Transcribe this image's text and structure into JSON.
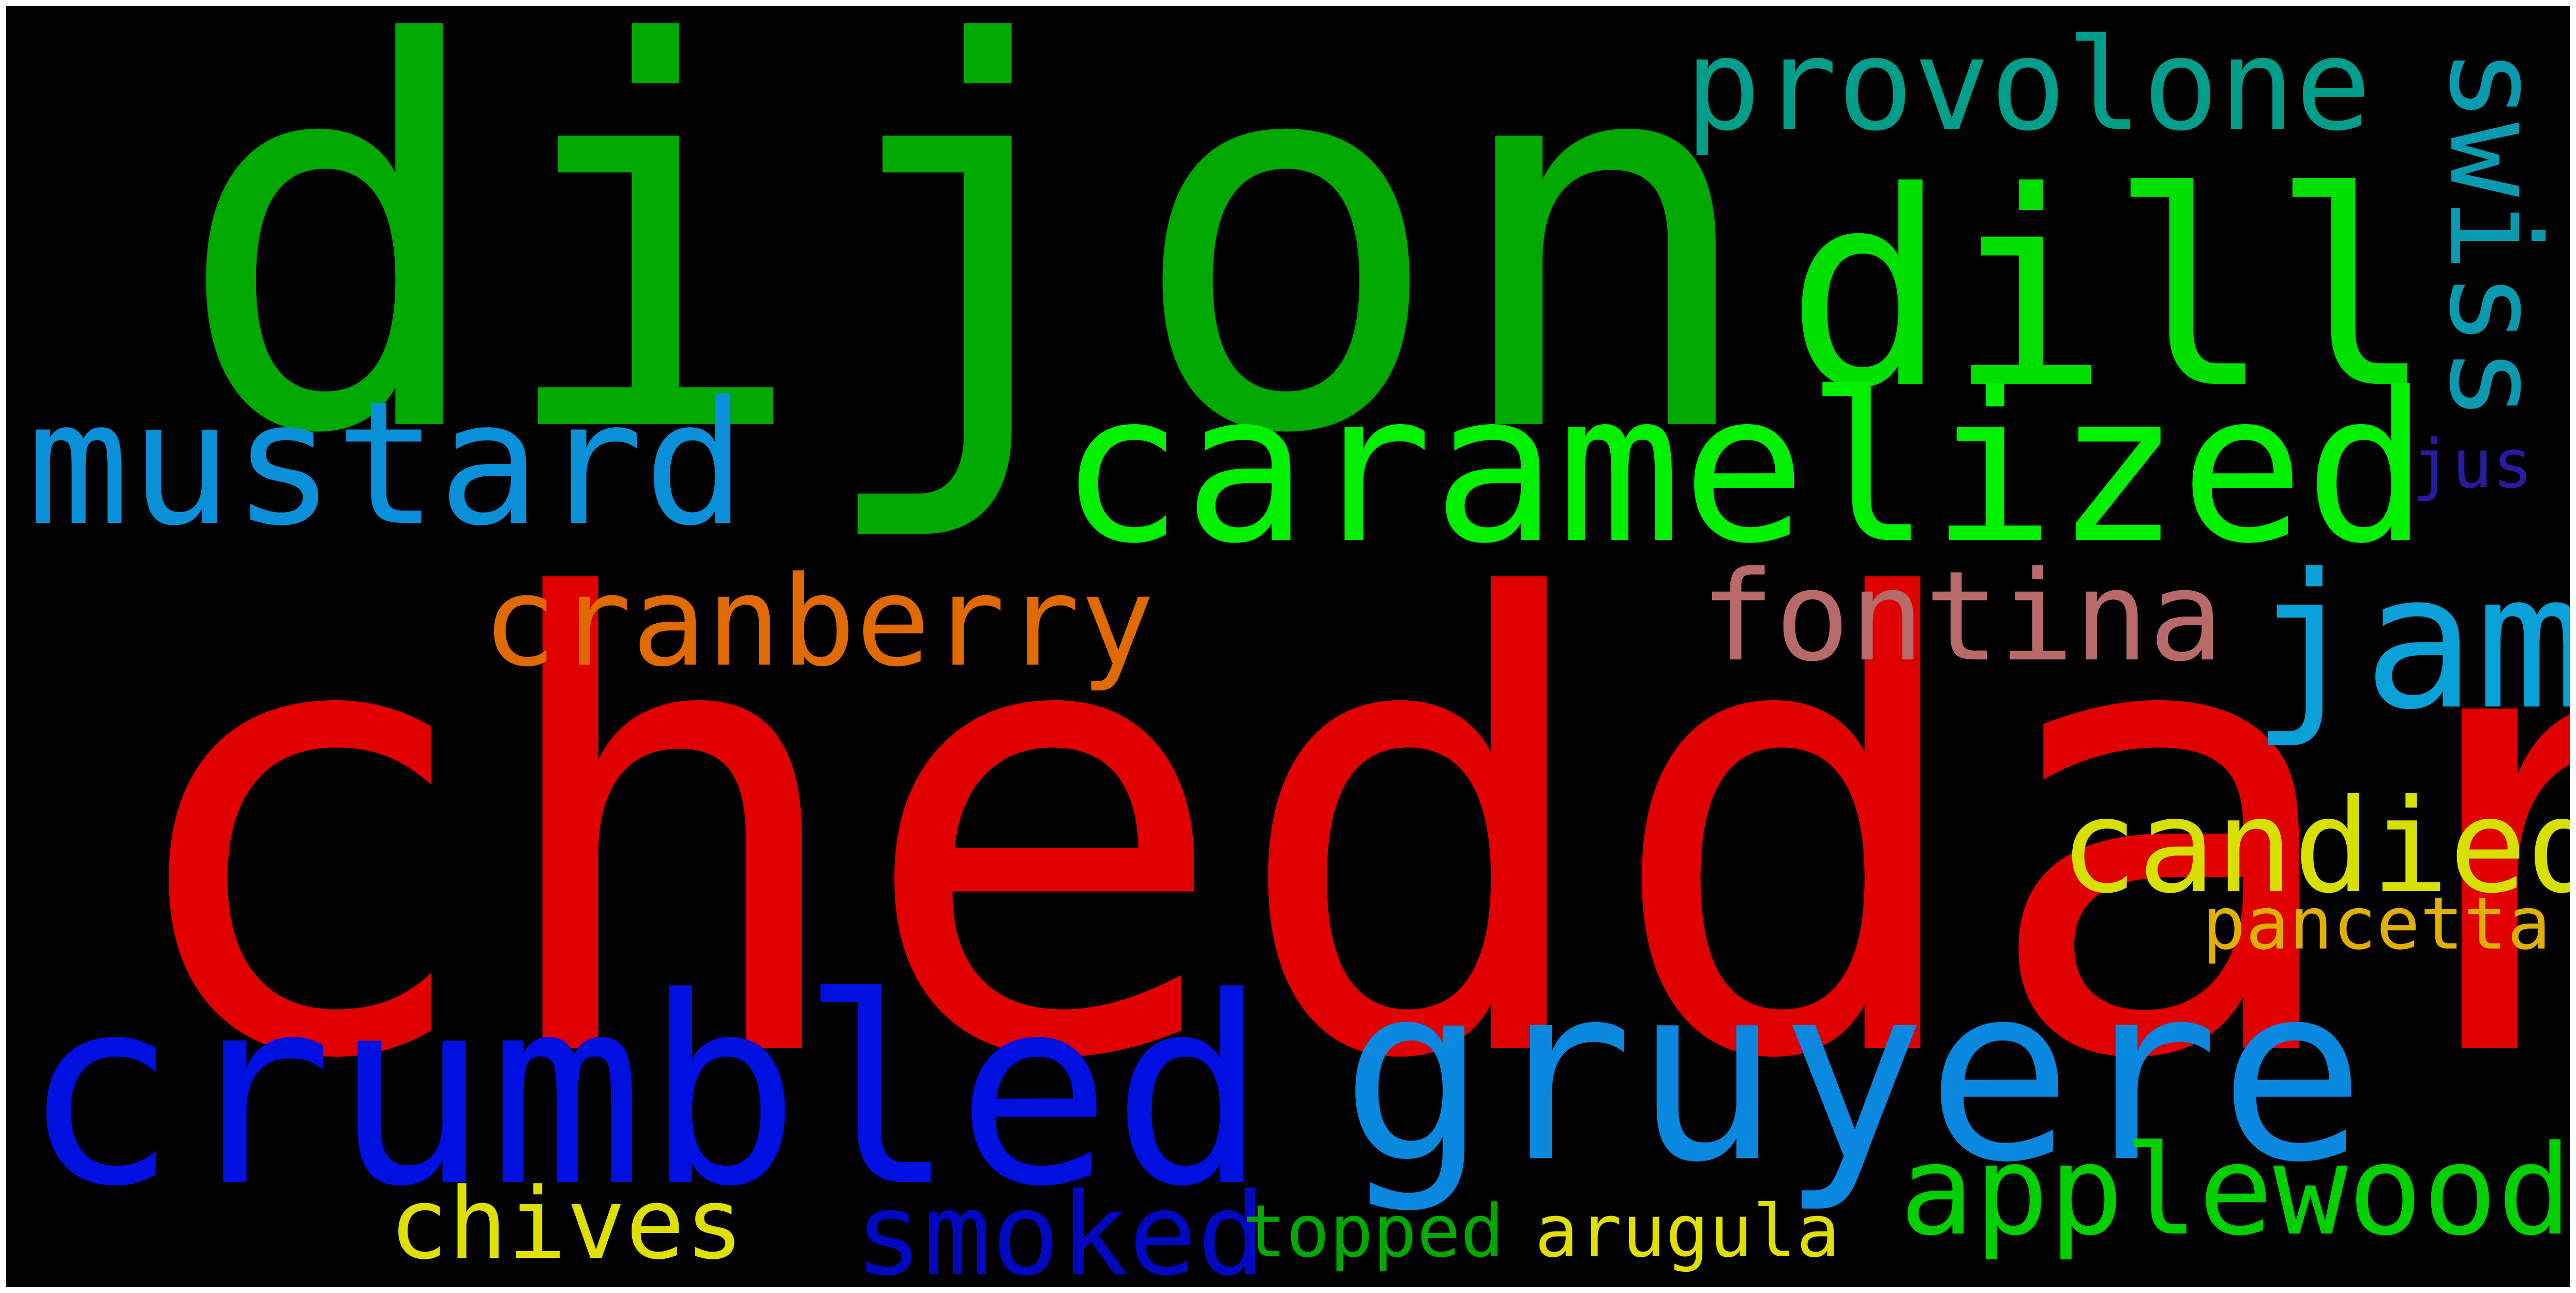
{
  "background_color": "#000000",
  "words": {
    "dijon": {
      "text": "dijon",
      "color": "#00a800"
    },
    "cheddar": {
      "text": "cheddar",
      "color": "#e00000"
    },
    "dill": {
      "text": "dill",
      "color": "#00e000"
    },
    "caramelized": {
      "text": "caramelized",
      "color": "#00f000"
    },
    "mustard": {
      "text": "mustard",
      "color": "#0a90d8"
    },
    "provolone": {
      "text": "provolone",
      "color": "#009d8a"
    },
    "swiss": {
      "text": "swiss",
      "color": "#0a9ab0"
    },
    "jam": {
      "text": "jam",
      "color": "#0aa0d8"
    },
    "jus": {
      "text": "jus",
      "color": "#2a1aa0"
    },
    "fontina": {
      "text": "fontina",
      "color": "#b86a6a"
    },
    "cranberry": {
      "text": "cranberry",
      "color": "#e06a00"
    },
    "candied": {
      "text": "candied",
      "color": "#d8e000"
    },
    "pancetta": {
      "text": "pancetta",
      "color": "#e0b000"
    },
    "gruyere": {
      "text": "gruyere",
      "color": "#0a88e0"
    },
    "crumbled": {
      "text": "crumbled",
      "color": "#0010e0"
    },
    "applewood": {
      "text": "applewood",
      "color": "#00d000"
    },
    "chives": {
      "text": "chives",
      "color": "#e0e000"
    },
    "smoked": {
      "text": "smoked",
      "color": "#0008c0"
    },
    "topped": {
      "text": "topped",
      "color": "#00a800"
    },
    "arugula": {
      "text": "arugula",
      "color": "#e0e000"
    }
  }
}
